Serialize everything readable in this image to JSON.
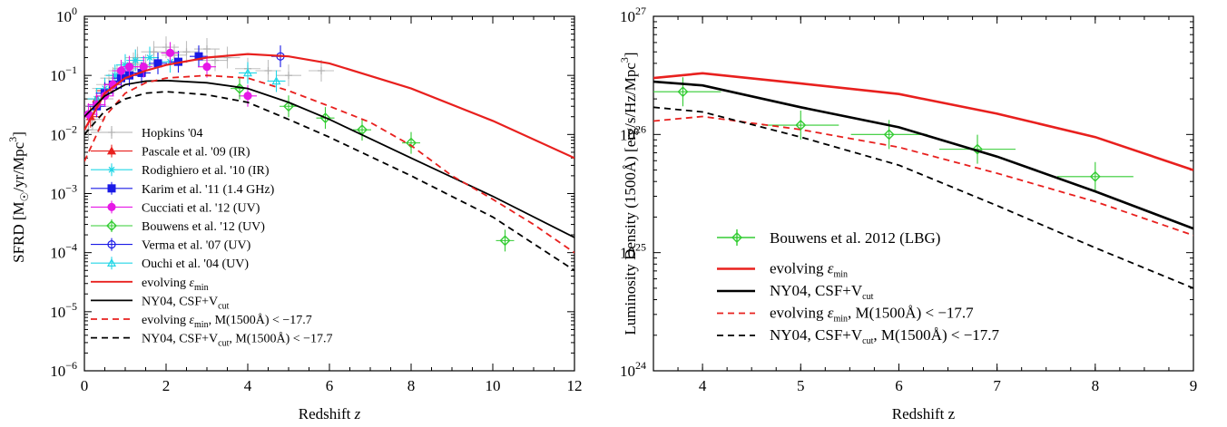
{
  "chart_data": [
    {
      "type": "line",
      "xlabel": "Redshift",
      "xlabel_var": "z",
      "ylabel": "SFRD [M☉/yr/Mpc³]",
      "ylabel_parts": {
        "pre": "SFRD [M",
        "sub": "☉",
        "mid": "/yr/Mpc",
        "sup": "3",
        "post": "]"
      },
      "xlim": [
        0,
        12
      ],
      "ylim": [
        1e-06,
        1
      ],
      "yscale": "log",
      "grid": false,
      "legend_position": "lower-left",
      "x_ticks": [
        "0",
        "2",
        "4",
        "6",
        "8",
        "10",
        "12"
      ],
      "y_ticks": [
        {
          "base": "10",
          "exp": "0"
        },
        {
          "base": "10",
          "exp": "−1"
        },
        {
          "base": "10",
          "exp": "−2"
        },
        {
          "base": "10",
          "exp": "−3"
        },
        {
          "base": "10",
          "exp": "−4"
        },
        {
          "base": "10",
          "exp": "−5"
        },
        {
          "base": "10",
          "exp": "−6"
        }
      ],
      "series": [
        {
          "label_parts": {
            "pre": "evolving ",
            "eps": "ε",
            "sub": "min",
            "post": ""
          },
          "style": "solid",
          "color": "#e8201e",
          "x": [
            0,
            0.5,
            1,
            1.5,
            2,
            3,
            4,
            5,
            6,
            8,
            10,
            12
          ],
          "y": [
            0.012,
            0.05,
            0.09,
            0.12,
            0.15,
            0.2,
            0.23,
            0.21,
            0.16,
            0.06,
            0.017,
            0.004
          ]
        },
        {
          "label_parts": {
            "pre": "NY04, CSF+V",
            "sub": "cut",
            "post": ""
          },
          "style": "solid",
          "color": "#000000",
          "x": [
            0,
            0.5,
            1,
            1.5,
            2,
            3,
            4,
            5,
            6,
            8,
            10,
            12
          ],
          "y": [
            0.02,
            0.045,
            0.07,
            0.08,
            0.082,
            0.075,
            0.06,
            0.035,
            0.018,
            0.004,
            0.0009,
            0.00018
          ]
        },
        {
          "label_parts": {
            "pre": "evolving ",
            "eps": "ε",
            "sub": "min",
            "post": ", M(1500Å) < −17.7"
          },
          "style": "dashed",
          "color": "#e8201e",
          "x": [
            0,
            0.5,
            1,
            1.5,
            2,
            3,
            4,
            5,
            6,
            7,
            8,
            9,
            10,
            11,
            12
          ],
          "y": [
            0.0035,
            0.02,
            0.05,
            0.075,
            0.09,
            0.1,
            0.09,
            0.055,
            0.03,
            0.016,
            0.0065,
            0.002,
            0.0008,
            0.0003,
            0.0001
          ]
        },
        {
          "label_parts": {
            "pre": "NY04, CSF+V",
            "sub": "cut",
            "post": ", M(1500Å) < −17.7"
          },
          "style": "dashed",
          "color": "#000000",
          "x": [
            0,
            0.5,
            1,
            1.5,
            2,
            3,
            4,
            5,
            6,
            8,
            10,
            12
          ],
          "y": [
            0.01,
            0.025,
            0.04,
            0.05,
            0.053,
            0.047,
            0.035,
            0.018,
            0.009,
            0.002,
            0.0004,
            5e-05
          ]
        }
      ],
      "observations": [
        {
          "label": "Hopkins '04",
          "marker": "plus",
          "color": "#b0b0b0",
          "points": [
            [
              0.1,
              0.012
            ],
            [
              0.2,
              0.018
            ],
            [
              0.3,
              0.03
            ],
            [
              0.4,
              0.04
            ],
            [
              0.5,
              0.06
            ],
            [
              0.6,
              0.07
            ],
            [
              0.7,
              0.09
            ],
            [
              0.8,
              0.1
            ],
            [
              0.9,
              0.12
            ],
            [
              1.0,
              0.13
            ],
            [
              1.2,
              0.16
            ],
            [
              1.3,
              0.2
            ],
            [
              1.5,
              0.15
            ],
            [
              1.7,
              0.25
            ],
            [
              2.0,
              0.3
            ],
            [
              2.2,
              0.22
            ],
            [
              2.5,
              0.25
            ],
            [
              3.0,
              0.28
            ],
            [
              3.2,
              0.18
            ],
            [
              3.5,
              0.2
            ],
            [
              4.0,
              0.13
            ],
            [
              4.5,
              0.12
            ],
            [
              5.0,
              0.1
            ],
            [
              5.8,
              0.12
            ]
          ]
        },
        {
          "label": "Pascale et al. '09 (IR)",
          "marker": "triangle",
          "color": "#e8201e",
          "points": [
            [
              0.15,
              0.02
            ],
            [
              0.3,
              0.04
            ],
            [
              0.5,
              0.055
            ],
            [
              0.7,
              0.07
            ]
          ]
        },
        {
          "label": "Rodighiero et al. '10 (IR)",
          "marker": "asterisk",
          "color": "#22d6e6",
          "points": [
            [
              0.3,
              0.04
            ],
            [
              0.5,
              0.06
            ],
            [
              0.75,
              0.1
            ],
            [
              1.0,
              0.15
            ],
            [
              1.25,
              0.18
            ],
            [
              1.6,
              0.2
            ],
            [
              2.1,
              0.17
            ]
          ]
        },
        {
          "label": "Karim et al. '11 (1.4 GHz)",
          "marker": "square",
          "color": "#1a1ae6",
          "points": [
            [
              0.3,
              0.03
            ],
            [
              0.5,
              0.05
            ],
            [
              0.7,
              0.07
            ],
            [
              0.9,
              0.09
            ],
            [
              1.1,
              0.1
            ],
            [
              1.4,
              0.11
            ],
            [
              1.8,
              0.16
            ],
            [
              2.3,
              0.17
            ],
            [
              2.8,
              0.21
            ]
          ]
        },
        {
          "label": "Cucciati et al. '12 (UV)",
          "marker": "circle-filled",
          "color": "#e619e6",
          "points": [
            [
              0.1,
              0.022
            ],
            [
              0.3,
              0.032
            ],
            [
              0.5,
              0.045
            ],
            [
              0.7,
              0.07
            ],
            [
              0.9,
              0.12
            ],
            [
              1.1,
              0.14
            ],
            [
              1.45,
              0.14
            ],
            [
              2.1,
              0.24
            ],
            [
              3.0,
              0.14
            ],
            [
              4.0,
              0.045
            ]
          ]
        },
        {
          "label": "Bouwens et al. '12 (UV)",
          "marker": "diamond",
          "color": "#33cc33",
          "points": [
            [
              3.8,
              0.06
            ],
            [
              5.0,
              0.03
            ],
            [
              5.9,
              0.019
            ],
            [
              6.8,
              0.012
            ],
            [
              8.0,
              0.0072
            ],
            [
              10.3,
              0.00016
            ]
          ]
        },
        {
          "label": "Verma et al. '07 (UV)",
          "marker": "circle-open",
          "color": "#1a1ae6",
          "points": [
            [
              4.8,
              0.21
            ]
          ]
        },
        {
          "label": "Ouchi et al. '04 (UV)",
          "marker": "triangle-open",
          "color": "#22d6e6",
          "points": [
            [
              4.0,
              0.11
            ],
            [
              4.7,
              0.08
            ]
          ]
        }
      ]
    },
    {
      "type": "line",
      "xlabel": "Redshift z",
      "ylabel_parts": {
        "pre": "Luminosity Density (1500Å) [erg/s/Hz/Mpc",
        "sup": "3",
        "post": "]"
      },
      "xlim": [
        3.5,
        9
      ],
      "ylim": [
        1e+24,
        1e+27
      ],
      "yscale": "log",
      "grid": false,
      "legend_position": "lower-left",
      "x_ticks": [
        "4",
        "5",
        "6",
        "7",
        "8",
        "9"
      ],
      "y_ticks": [
        {
          "base": "10",
          "exp": "27"
        },
        {
          "base": "10",
          "exp": "26"
        },
        {
          "base": "10",
          "exp": "25"
        },
        {
          "base": "10",
          "exp": "24"
        }
      ],
      "series": [
        {
          "label_parts": {
            "pre": "evolving ",
            "eps": "ε",
            "sub": "min",
            "post": ""
          },
          "style": "solid",
          "color": "#e8201e",
          "x": [
            3.5,
            4,
            5,
            6,
            7,
            8,
            9
          ],
          "y": [
            3e+26,
            3.3e+26,
            2.7e+26,
            2.2e+26,
            1.5e+26,
            9.5e+25,
            5e+25
          ]
        },
        {
          "label_parts": {
            "pre": "NY04, CSF+V",
            "sub": "cut",
            "post": ""
          },
          "style": "solid",
          "color": "#000000",
          "x": [
            3.5,
            4,
            5,
            6,
            7,
            8,
            9
          ],
          "y": [
            2.8e+26,
            2.6e+26,
            1.7e+26,
            1.15e+26,
            6.5e+25,
            3.3e+25,
            1.6e+25
          ]
        },
        {
          "label_parts": {
            "pre": "evolving ",
            "eps": "ε",
            "sub": "min",
            "post": ", M(1500Å) < −17.7"
          },
          "style": "dashed",
          "color": "#e8201e",
          "x": [
            3.5,
            4,
            5,
            6,
            7,
            8,
            9
          ],
          "y": [
            1.3e+26,
            1.42e+26,
            1.1e+26,
            7.8e+25,
            4.7e+25,
            2.7e+25,
            1.4e+25
          ]
        },
        {
          "label_parts": {
            "pre": "NY04, CSF+V",
            "sub": "cut",
            "post": ", M(1500Å) < −17.7"
          },
          "style": "dashed",
          "color": "#000000",
          "x": [
            3.5,
            4,
            5,
            6,
            7,
            8,
            9
          ],
          "y": [
            1.7e+26,
            1.55e+26,
            9.5e+25,
            5.5e+25,
            2.5e+25,
            1.1e+25,
            5e+24
          ]
        }
      ],
      "observations": [
        {
          "label": "Bouwens et al. 2012 (LBG)",
          "marker": "diamond",
          "color": "#33cc33",
          "points": [
            [
              3.8,
              2.3e+26
            ],
            [
              5.0,
              1.2e+26
            ],
            [
              5.9,
              1e+26
            ],
            [
              6.8,
              7.5e+25
            ],
            [
              8.0,
              4.4e+25
            ]
          ]
        }
      ]
    }
  ]
}
